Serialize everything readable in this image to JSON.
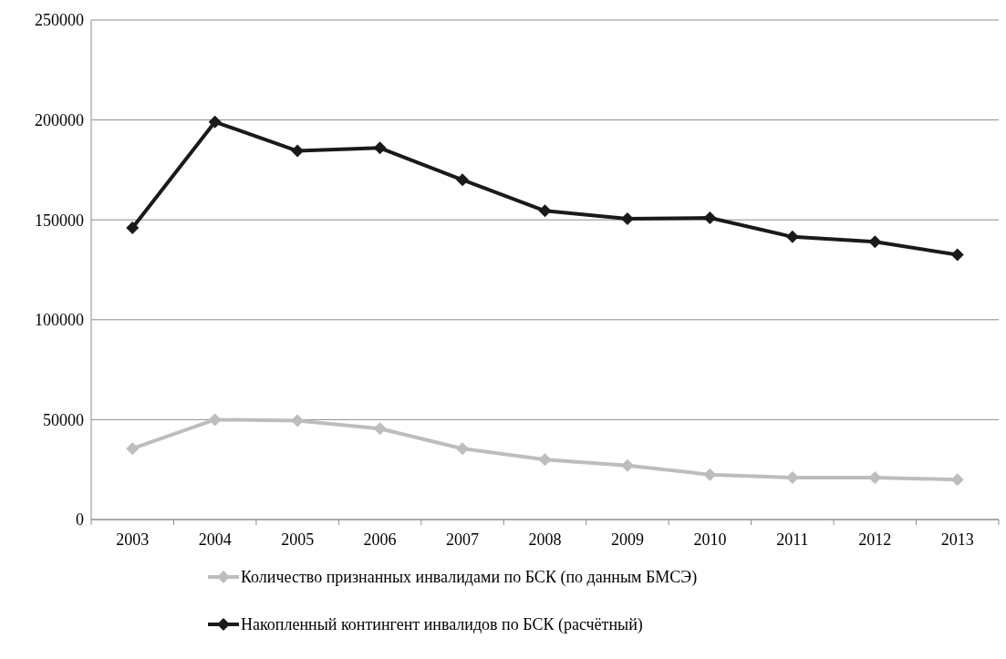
{
  "chart_data": {
    "type": "line",
    "categories": [
      "2003",
      "2004",
      "2005",
      "2006",
      "2007",
      "2008",
      "2009",
      "2010",
      "2011",
      "2012",
      "2013"
    ],
    "series": [
      {
        "name": "Количество признанных инвалидами по БСК (по данным БМСЭ)",
        "color": "#bdbdbd",
        "values": [
          35500,
          50000,
          49500,
          45500,
          35500,
          30000,
          27000,
          22500,
          21000,
          21000,
          20000
        ]
      },
      {
        "name": "Накопленный контингент инвалидов по БСК (расчётный)",
        "color": "#1a1a1a",
        "values": [
          146000,
          199000,
          184500,
          186000,
          170000,
          154500,
          150500,
          151000,
          141500,
          139000,
          132500
        ]
      }
    ],
    "ylim": [
      0,
      250000
    ],
    "yticks": [
      0,
      50000,
      100000,
      150000,
      200000,
      250000
    ],
    "grid": "y",
    "legend": "bottom",
    "marker": "diamond",
    "line_style": "solid"
  }
}
